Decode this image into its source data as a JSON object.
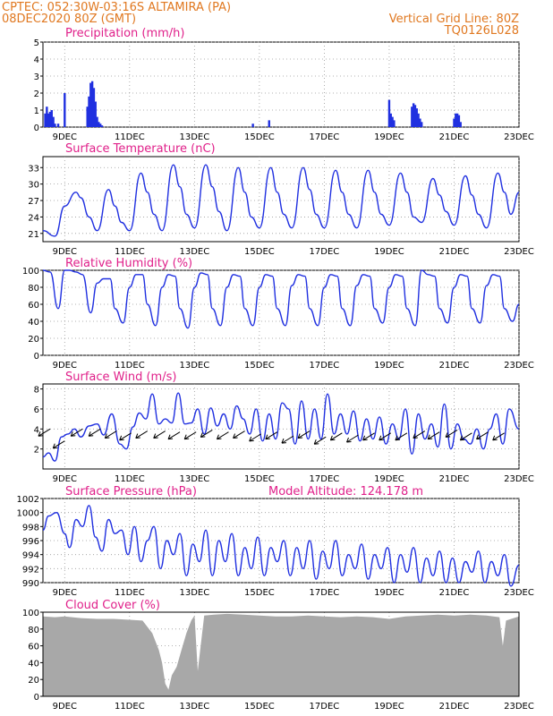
{
  "header": {
    "line1": "CPTEC:   052:30W-03:16S   ALTAMIRA (PA)",
    "line2": "08DEC2020 80Z (GMT)",
    "right1": "Vertical Grid Line: 80Z",
    "right2": "TQ0126L028"
  },
  "colors": {
    "header": "#e07820",
    "title": "#e0208a",
    "series": "#2030e0",
    "cloud": "#a8a8a8",
    "grid": "#999999"
  },
  "x_ticks": [
    "9DEC",
    "11DEC",
    "13DEC",
    "15DEC",
    "17DEC",
    "19DEC",
    "21DEC",
    "23DEC"
  ],
  "chart_data": [
    {
      "type": "bar",
      "title": "Precipitation (mm/h)",
      "ylim": [
        0,
        5
      ],
      "yticks": [
        0,
        1,
        2,
        3,
        4,
        5
      ],
      "xlim_days": [
        8.33,
        23.0
      ],
      "x_days": [
        8.4,
        8.45,
        8.5,
        8.55,
        8.6,
        8.65,
        8.7,
        8.8,
        9.0,
        9.7,
        9.75,
        9.8,
        9.85,
        9.9,
        9.95,
        10.0,
        10.05,
        10.1,
        10.15,
        14.8,
        15.3,
        19.0,
        19.05,
        19.1,
        19.15,
        19.7,
        19.75,
        19.8,
        19.85,
        19.9,
        19.95,
        20.0,
        21.0,
        21.05,
        21.1,
        21.15,
        21.2
      ],
      "values": [
        0.8,
        1.2,
        0.8,
        0.9,
        1.0,
        0.6,
        0.2,
        0.2,
        2.0,
        1.2,
        1.8,
        2.6,
        2.7,
        2.3,
        1.5,
        0.6,
        0.3,
        0.2,
        0.1,
        0.2,
        0.4,
        1.6,
        0.8,
        0.6,
        0.4,
        1.2,
        1.4,
        1.3,
        1.1,
        0.8,
        0.5,
        0.3,
        0.5,
        0.8,
        0.8,
        0.7,
        0.3
      ]
    },
    {
      "type": "line",
      "title": "Surface Temperature (nC)",
      "ylim": [
        19.5,
        35
      ],
      "yticks": [
        21,
        24,
        27,
        30,
        33
      ],
      "xlim_days": [
        8.33,
        23.0
      ],
      "x_days": [
        8.33,
        8.7,
        9.0,
        9.35,
        9.5,
        9.75,
        10.0,
        10.35,
        10.55,
        10.75,
        11.0,
        11.35,
        11.55,
        11.75,
        12.0,
        12.35,
        12.55,
        12.75,
        13.0,
        13.35,
        13.55,
        13.75,
        14.0,
        14.35,
        14.55,
        14.75,
        15.0,
        15.35,
        15.55,
        15.75,
        16.0,
        16.35,
        16.55,
        16.75,
        17.0,
        17.35,
        17.55,
        17.75,
        18.0,
        18.35,
        18.55,
        18.75,
        19.0,
        19.35,
        19.55,
        19.75,
        20.0,
        20.35,
        20.55,
        20.75,
        21.0,
        21.35,
        21.55,
        21.75,
        22.0,
        22.35,
        22.55,
        22.75,
        23.0
      ],
      "values": [
        21.5,
        20.5,
        26.0,
        28.5,
        27.5,
        24.0,
        21.5,
        29.0,
        26.0,
        23.0,
        21.5,
        32.0,
        28.5,
        24.5,
        21.5,
        33.5,
        29.5,
        24.5,
        22.0,
        33.5,
        29.5,
        25.0,
        21.5,
        33.0,
        28.5,
        24.0,
        22.0,
        33.0,
        28.5,
        24.5,
        22.0,
        33.0,
        29.0,
        24.5,
        22.0,
        32.5,
        28.5,
        24.5,
        22.0,
        32.5,
        28.5,
        24.5,
        22.5,
        32.0,
        28.5,
        24.0,
        23.0,
        31.0,
        28.0,
        25.0,
        22.5,
        31.5,
        28.0,
        24.5,
        22.0,
        32.0,
        28.5,
        24.5,
        28.5
      ]
    },
    {
      "type": "line",
      "title": "Relative Humidity (%)",
      "ylim": [
        0,
        100
      ],
      "yticks": [
        0,
        20,
        40,
        60,
        80,
        100
      ],
      "xlim_days": [
        8.33,
        23.0
      ],
      "x_days": [
        8.33,
        8.55,
        8.8,
        9.0,
        9.15,
        9.35,
        9.55,
        9.8,
        10.0,
        10.2,
        10.4,
        10.55,
        10.8,
        11.0,
        11.2,
        11.4,
        11.55,
        11.8,
        12.0,
        12.2,
        12.4,
        12.55,
        12.8,
        13.0,
        13.2,
        13.4,
        13.55,
        13.8,
        14.0,
        14.2,
        14.4,
        14.55,
        14.8,
        15.0,
        15.2,
        15.4,
        15.55,
        15.8,
        16.0,
        16.2,
        16.4,
        16.55,
        16.8,
        17.0,
        17.2,
        17.4,
        17.55,
        17.8,
        18.0,
        18.2,
        18.4,
        18.55,
        18.8,
        19.0,
        19.2,
        19.4,
        19.55,
        19.8,
        20.0,
        20.2,
        20.4,
        20.55,
        20.8,
        21.0,
        21.2,
        21.4,
        21.55,
        21.8,
        22.0,
        22.2,
        22.4,
        22.55,
        22.8,
        23.0
      ],
      "values": [
        100,
        98,
        55,
        100,
        100,
        98,
        95,
        50,
        85,
        90,
        90,
        55,
        38,
        80,
        95,
        95,
        60,
        35,
        80,
        95,
        93,
        55,
        32,
        80,
        97,
        95,
        55,
        35,
        80,
        95,
        93,
        55,
        35,
        80,
        95,
        93,
        55,
        35,
        82,
        95,
        93,
        55,
        35,
        80,
        95,
        93,
        55,
        35,
        82,
        95,
        93,
        55,
        38,
        80,
        95,
        93,
        55,
        35,
        100,
        95,
        93,
        55,
        38,
        80,
        95,
        93,
        55,
        38,
        82,
        95,
        93,
        55,
        40,
        60
      ]
    },
    {
      "type": "line",
      "title": "Surface Wind (m/s)",
      "ylim": [
        0,
        8.5
      ],
      "yticks": [
        2,
        4,
        6,
        8
      ],
      "xlim_days": [
        8.33,
        23.0
      ],
      "x_days": [
        8.33,
        8.5,
        8.7,
        8.9,
        9.1,
        9.3,
        9.5,
        9.75,
        10.0,
        10.2,
        10.45,
        10.7,
        10.9,
        11.1,
        11.3,
        11.5,
        11.7,
        11.9,
        12.1,
        12.3,
        12.5,
        12.7,
        12.9,
        13.1,
        13.3,
        13.5,
        13.7,
        13.9,
        14.1,
        14.3,
        14.5,
        14.7,
        14.9,
        15.1,
        15.3,
        15.5,
        15.7,
        15.9,
        16.1,
        16.3,
        16.5,
        16.7,
        16.9,
        17.1,
        17.3,
        17.5,
        17.7,
        17.9,
        18.1,
        18.3,
        18.5,
        18.7,
        18.9,
        19.1,
        19.3,
        19.5,
        19.7,
        19.9,
        20.1,
        20.3,
        20.5,
        20.7,
        20.9,
        21.1,
        21.3,
        21.5,
        21.7,
        21.9,
        22.1,
        22.3,
        22.5,
        22.7,
        23.0
      ],
      "values": [
        1.2,
        1.6,
        0.8,
        3.2,
        3.5,
        4.0,
        3.2,
        4.3,
        4.5,
        3.4,
        5.5,
        2.5,
        2.0,
        4.2,
        5.6,
        5.0,
        7.5,
        4.5,
        5.0,
        4.6,
        7.6,
        4.5,
        4.6,
        6.0,
        3.5,
        6.1,
        4.3,
        5.5,
        4.0,
        6.3,
        5.0,
        3.5,
        6.0,
        2.8,
        5.5,
        3.0,
        6.6,
        6.0,
        2.5,
        6.8,
        3.0,
        6.0,
        3.0,
        7.5,
        3.5,
        5.5,
        3.5,
        5.8,
        2.8,
        5.0,
        3.0,
        5.2,
        2.5,
        4.5,
        3.0,
        6.0,
        1.5,
        5.5,
        3.0,
        4.5,
        2.2,
        6.5,
        2.0,
        4.5,
        3.0,
        2.5,
        4.0,
        2.0,
        4.0,
        5.5,
        2.5,
        6.0,
        4.0
      ],
      "wind_barbs_x_days": [
        8.55,
        9.0,
        9.55,
        10.1,
        10.6,
        11.05,
        11.55,
        12.1,
        12.55,
        13.05,
        13.55,
        14.05,
        14.55,
        15.05,
        15.55,
        16.05,
        16.55,
        17.05,
        17.55,
        18.05,
        18.55,
        19.05,
        19.55,
        20.1,
        20.55,
        21.1,
        21.55,
        22.05,
        22.55
      ],
      "wind_barbs_y": [
        4.0,
        2.8,
        4.0,
        4.0,
        3.8,
        3.6,
        3.8,
        3.8,
        3.7,
        3.7,
        3.9,
        3.7,
        3.8,
        3.5,
        3.7,
        3.3,
        3.8,
        3.2,
        3.6,
        3.4,
        3.6,
        3.6,
        3.6,
        3.8,
        3.7,
        3.9,
        3.6,
        3.7,
        3.6
      ]
    },
    {
      "type": "line",
      "title": "Surface Pressure (hPa)",
      "annotation": "Model Altitude: 124.178 m",
      "ylim": [
        990,
        1002
      ],
      "yticks": [
        990,
        992,
        994,
        996,
        998,
        1000,
        1002
      ],
      "xlim_days": [
        8.33,
        23.0
      ],
      "x_days": [
        8.33,
        8.5,
        8.75,
        9.0,
        9.15,
        9.35,
        9.55,
        9.75,
        9.95,
        10.15,
        10.35,
        10.55,
        10.75,
        10.95,
        11.15,
        11.35,
        11.55,
        11.75,
        11.95,
        12.15,
        12.35,
        12.55,
        12.75,
        12.95,
        13.15,
        13.35,
        13.55,
        13.75,
        13.95,
        14.15,
        14.35,
        14.55,
        14.75,
        14.95,
        15.15,
        15.35,
        15.55,
        15.75,
        15.95,
        16.15,
        16.35,
        16.55,
        16.75,
        16.95,
        17.15,
        17.35,
        17.55,
        17.75,
        17.95,
        18.15,
        18.35,
        18.55,
        18.75,
        18.95,
        19.15,
        19.35,
        19.55,
        19.75,
        19.95,
        20.15,
        20.35,
        20.55,
        20.75,
        20.95,
        21.15,
        21.35,
        21.55,
        21.75,
        21.95,
        22.15,
        22.35,
        22.55,
        22.75,
        23.0
      ],
      "values": [
        997.5,
        999.5,
        1000.0,
        997.0,
        995.0,
        999.0,
        998.0,
        1001.0,
        996.5,
        994.5,
        999.0,
        997.0,
        997.5,
        994.0,
        998.0,
        993.0,
        996.0,
        998.0,
        992.0,
        996.0,
        994.0,
        997.0,
        991.0,
        995.5,
        993.0,
        997.5,
        991.0,
        996.0,
        993.0,
        997.0,
        991.0,
        995.0,
        992.0,
        996.5,
        991.0,
        995.0,
        993.0,
        996.0,
        991.0,
        995.0,
        992.0,
        996.0,
        990.5,
        994.5,
        992.0,
        996.0,
        991.0,
        994.0,
        992.0,
        995.5,
        990.5,
        994.0,
        992.0,
        995.0,
        990.0,
        994.0,
        991.5,
        995.0,
        990.0,
        993.5,
        991.0,
        994.5,
        990.0,
        993.5,
        990.0,
        993.0,
        991.5,
        994.5,
        990.0,
        993.0,
        991.0,
        994.0,
        989.5,
        992.5
      ]
    },
    {
      "type": "area",
      "title": "Cloud Cover (%)",
      "ylim": [
        0,
        100
      ],
      "yticks": [
        0,
        20,
        40,
        60,
        80,
        100
      ],
      "xlim_days": [
        8.33,
        23.0
      ],
      "x_days": [
        8.33,
        8.7,
        9.0,
        9.5,
        10.0,
        10.5,
        11.0,
        11.4,
        11.7,
        11.9,
        12.0,
        12.1,
        12.2,
        12.3,
        12.45,
        12.6,
        12.75,
        12.9,
        13.0,
        13.1,
        13.3,
        13.6,
        14.0,
        14.5,
        15.0,
        15.5,
        16.0,
        16.5,
        17.0,
        17.5,
        18.0,
        18.5,
        19.0,
        19.5,
        20.0,
        20.5,
        21.0,
        21.5,
        22.0,
        22.4,
        22.5,
        22.6,
        23.0
      ],
      "values": [
        95,
        94,
        95,
        93,
        92,
        92,
        91,
        90,
        75,
        55,
        40,
        15,
        8,
        25,
        35,
        55,
        75,
        90,
        96,
        30,
        96,
        97,
        98,
        97,
        96,
        95,
        95,
        96,
        95,
        94,
        95,
        94,
        92,
        95,
        96,
        97,
        96,
        97,
        96,
        94,
        60,
        90,
        95
      ]
    }
  ]
}
